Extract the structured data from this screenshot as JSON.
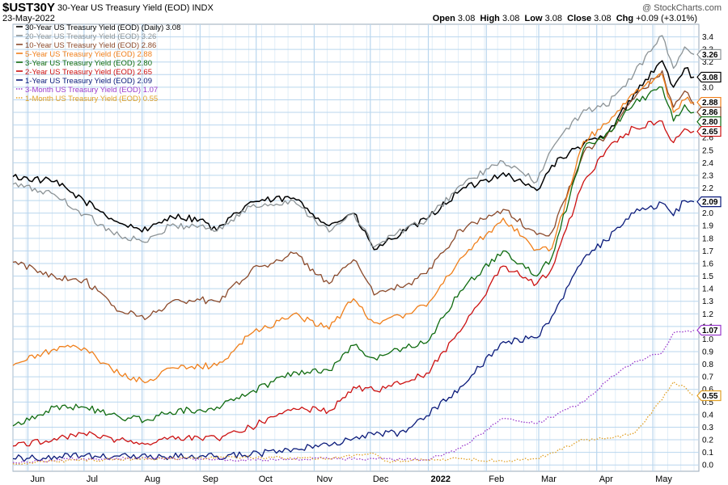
{
  "header": {
    "symbol": "$UST30Y",
    "title": "30-Year US Treasury Yield (EOD)",
    "exchange": "INDX",
    "date": "23-May-2022",
    "attribution": "@ StockCharts.com",
    "open_label": "Open",
    "open": "3.08",
    "high_label": "High",
    "high": "3.08",
    "low_label": "Low",
    "low": "3.08",
    "close_label": "Close",
    "close": "3.08",
    "chg_label": "Chg",
    "chg": "+0.09 (+3.01%)"
  },
  "colors": {
    "background": "#ffffff",
    "grid": "#b9d6ee",
    "plot_border": "#9aa8b8",
    "y30": "#000000",
    "y20": "#8c9396",
    "y10": "#8b4a2b",
    "y5": "#f07f1a",
    "y3": "#0f6b0f",
    "y2": "#cc1111",
    "y1": "#0a1a7a",
    "m3": "#9a3acb",
    "m1": "#e0a025"
  },
  "chart_data": {
    "type": "line",
    "title": "30-Year US Treasury Yield (EOD)",
    "x_range": [
      "2021-05-24",
      "2022-05-23"
    ],
    "ylim": [
      -0.05,
      3.5
    ],
    "y_ticks": [
      "0.0",
      "0.1",
      "0.2",
      "0.3",
      "0.4",
      "0.5",
      "0.6",
      "0.7",
      "0.8",
      "0.9",
      "1.0",
      "1.1",
      "1.2",
      "1.3",
      "1.4",
      "1.5",
      "1.6",
      "1.7",
      "1.8",
      "1.9",
      "2.0",
      "2.1",
      "2.2",
      "2.3",
      "2.4",
      "2.5",
      "2.6",
      "2.7",
      "2.8",
      "2.9",
      "3.0",
      "3.1",
      "3.2",
      "3.3",
      "3.4"
    ],
    "x_ticks": [
      {
        "date": "2021-06-01",
        "label": "Jun",
        "bold": false
      },
      {
        "date": "2021-07-01",
        "label": "Jul",
        "bold": false
      },
      {
        "date": "2021-08-01",
        "label": "Aug",
        "bold": false
      },
      {
        "date": "2021-09-01",
        "label": "Sep",
        "bold": false
      },
      {
        "date": "2021-10-01",
        "label": "Oct",
        "bold": false
      },
      {
        "date": "2021-11-01",
        "label": "Nov",
        "bold": false
      },
      {
        "date": "2021-12-01",
        "label": "Dec",
        "bold": false
      },
      {
        "date": "2022-01-01",
        "label": "2022",
        "bold": true
      },
      {
        "date": "2022-02-01",
        "label": "Feb",
        "bold": false
      },
      {
        "date": "2022-03-01",
        "label": "Mar",
        "bold": false
      },
      {
        "date": "2022-04-01",
        "label": "Apr",
        "bold": false
      },
      {
        "date": "2022-05-01",
        "label": "May",
        "bold": false
      }
    ],
    "grid": true,
    "legend_position": "top-left",
    "series": [
      {
        "key": "y30",
        "legend": "30-Year US Treasury Yield (EOD) (Daily) 3.08",
        "last_label": "3.08",
        "last": 3.08,
        "dotted": false,
        "points": [
          [
            "2021-05-24",
            2.29
          ],
          [
            "2021-06-15",
            2.25
          ],
          [
            "2021-07-01",
            2.1
          ],
          [
            "2021-07-20",
            1.92
          ],
          [
            "2021-08-04",
            1.86
          ],
          [
            "2021-08-16",
            1.98
          ],
          [
            "2021-09-01",
            1.95
          ],
          [
            "2021-09-10",
            1.86
          ],
          [
            "2021-09-28",
            2.09
          ],
          [
            "2021-10-21",
            2.12
          ],
          [
            "2021-11-09",
            1.9
          ],
          [
            "2021-11-22",
            2.0
          ],
          [
            "2021-12-03",
            1.71
          ],
          [
            "2021-12-20",
            1.86
          ],
          [
            "2021-12-31",
            1.95
          ],
          [
            "2022-01-18",
            2.18
          ],
          [
            "2022-02-10",
            2.32
          ],
          [
            "2022-02-28",
            2.18
          ],
          [
            "2022-03-08",
            2.38
          ],
          [
            "2022-03-25",
            2.55
          ],
          [
            "2022-04-06",
            2.61
          ],
          [
            "2022-04-21",
            2.95
          ],
          [
            "2022-05-06",
            3.21
          ],
          [
            "2022-05-12",
            3.0
          ],
          [
            "2022-05-18",
            3.15
          ],
          [
            "2022-05-23",
            3.08
          ]
        ]
      },
      {
        "key": "y20",
        "legend": "20-Year US Treasury Yield (EOD) 3.26",
        "last_label": "3.26",
        "last": 3.26,
        "dotted": false,
        "points": [
          [
            "2021-05-24",
            2.23
          ],
          [
            "2021-06-15",
            2.15
          ],
          [
            "2021-07-01",
            1.99
          ],
          [
            "2021-07-20",
            1.82
          ],
          [
            "2021-08-04",
            1.77
          ],
          [
            "2021-08-16",
            1.9
          ],
          [
            "2021-09-01",
            1.9
          ],
          [
            "2021-09-10",
            1.86
          ],
          [
            "2021-09-28",
            2.05
          ],
          [
            "2021-10-21",
            2.1
          ],
          [
            "2021-11-09",
            1.85
          ],
          [
            "2021-11-22",
            2.0
          ],
          [
            "2021-12-03",
            1.73
          ],
          [
            "2021-12-20",
            1.88
          ],
          [
            "2021-12-31",
            1.94
          ],
          [
            "2022-01-18",
            2.22
          ],
          [
            "2022-02-10",
            2.41
          ],
          [
            "2022-02-28",
            2.25
          ],
          [
            "2022-03-08",
            2.51
          ],
          [
            "2022-03-25",
            2.82
          ],
          [
            "2022-04-06",
            2.85
          ],
          [
            "2022-04-21",
            3.11
          ],
          [
            "2022-05-06",
            3.41
          ],
          [
            "2022-05-12",
            3.15
          ],
          [
            "2022-05-18",
            3.32
          ],
          [
            "2022-05-23",
            3.26
          ]
        ]
      },
      {
        "key": "y10",
        "legend": "10-Year US Treasury Yield (EOD) 2.86",
        "last_label": "2.86",
        "last": 2.86,
        "dotted": false,
        "points": [
          [
            "2021-05-24",
            1.61
          ],
          [
            "2021-06-15",
            1.5
          ],
          [
            "2021-07-01",
            1.47
          ],
          [
            "2021-07-20",
            1.22
          ],
          [
            "2021-08-04",
            1.17
          ],
          [
            "2021-08-16",
            1.29
          ],
          [
            "2021-09-01",
            1.31
          ],
          [
            "2021-09-10",
            1.3
          ],
          [
            "2021-09-28",
            1.54
          ],
          [
            "2021-10-21",
            1.68
          ],
          [
            "2021-11-09",
            1.44
          ],
          [
            "2021-11-22",
            1.63
          ],
          [
            "2021-12-03",
            1.35
          ],
          [
            "2021-12-20",
            1.43
          ],
          [
            "2021-12-31",
            1.52
          ],
          [
            "2022-01-18",
            1.87
          ],
          [
            "2022-02-10",
            2.03
          ],
          [
            "2022-02-28",
            1.83
          ],
          [
            "2022-03-08",
            1.85
          ],
          [
            "2022-03-25",
            2.48
          ],
          [
            "2022-04-06",
            2.61
          ],
          [
            "2022-04-21",
            2.91
          ],
          [
            "2022-05-06",
            3.13
          ],
          [
            "2022-05-12",
            2.84
          ],
          [
            "2022-05-18",
            2.97
          ],
          [
            "2022-05-23",
            2.86
          ]
        ]
      },
      {
        "key": "y5",
        "legend": "5-Year US Treasury Yield (EOD) 2.88",
        "last_label": "2.88",
        "last": 2.88,
        "dotted": false,
        "points": [
          [
            "2021-05-24",
            0.79
          ],
          [
            "2021-06-15",
            0.92
          ],
          [
            "2021-07-01",
            0.93
          ],
          [
            "2021-07-20",
            0.72
          ],
          [
            "2021-08-04",
            0.66
          ],
          [
            "2021-08-16",
            0.77
          ],
          [
            "2021-09-01",
            0.78
          ],
          [
            "2021-09-10",
            0.79
          ],
          [
            "2021-09-28",
            1.04
          ],
          [
            "2021-10-21",
            1.2
          ],
          [
            "2021-11-09",
            1.08
          ],
          [
            "2021-11-22",
            1.32
          ],
          [
            "2021-12-03",
            1.13
          ],
          [
            "2021-12-20",
            1.2
          ],
          [
            "2021-12-31",
            1.26
          ],
          [
            "2022-01-18",
            1.64
          ],
          [
            "2022-02-10",
            1.96
          ],
          [
            "2022-02-28",
            1.71
          ],
          [
            "2022-03-08",
            1.72
          ],
          [
            "2022-03-25",
            2.57
          ],
          [
            "2022-04-06",
            2.71
          ],
          [
            "2022-04-21",
            2.95
          ],
          [
            "2022-05-06",
            3.1
          ],
          [
            "2022-05-12",
            2.8
          ],
          [
            "2022-05-18",
            2.9
          ],
          [
            "2022-05-23",
            2.88
          ]
        ]
      },
      {
        "key": "y3",
        "legend": "3-Year US Treasury Yield (EOD) 2.80",
        "last_label": "2.80",
        "last": 2.8,
        "dotted": false,
        "points": [
          [
            "2021-05-24",
            0.31
          ],
          [
            "2021-06-15",
            0.46
          ],
          [
            "2021-07-01",
            0.46
          ],
          [
            "2021-07-20",
            0.38
          ],
          [
            "2021-08-04",
            0.36
          ],
          [
            "2021-08-16",
            0.42
          ],
          [
            "2021-09-01",
            0.44
          ],
          [
            "2021-09-10",
            0.46
          ],
          [
            "2021-09-28",
            0.58
          ],
          [
            "2021-10-21",
            0.74
          ],
          [
            "2021-11-09",
            0.75
          ],
          [
            "2021-11-22",
            0.95
          ],
          [
            "2021-12-03",
            0.85
          ],
          [
            "2021-12-20",
            0.93
          ],
          [
            "2021-12-31",
            0.97
          ],
          [
            "2022-01-18",
            1.38
          ],
          [
            "2022-02-10",
            1.7
          ],
          [
            "2022-02-28",
            1.5
          ],
          [
            "2022-03-08",
            1.65
          ],
          [
            "2022-03-25",
            2.51
          ],
          [
            "2022-04-06",
            2.63
          ],
          [
            "2022-04-21",
            2.87
          ],
          [
            "2022-05-06",
            3.0
          ],
          [
            "2022-05-12",
            2.73
          ],
          [
            "2022-05-18",
            2.86
          ],
          [
            "2022-05-23",
            2.8
          ]
        ]
      },
      {
        "key": "y2",
        "legend": "2-Year US Treasury Yield (EOD) 2.65",
        "last_label": "2.65",
        "last": 2.65,
        "dotted": false,
        "points": [
          [
            "2021-05-24",
            0.15
          ],
          [
            "2021-06-15",
            0.21
          ],
          [
            "2021-07-01",
            0.25
          ],
          [
            "2021-07-20",
            0.2
          ],
          [
            "2021-08-04",
            0.17
          ],
          [
            "2021-08-16",
            0.22
          ],
          [
            "2021-09-01",
            0.21
          ],
          [
            "2021-09-10",
            0.21
          ],
          [
            "2021-09-28",
            0.3
          ],
          [
            "2021-10-21",
            0.45
          ],
          [
            "2021-11-09",
            0.43
          ],
          [
            "2021-11-22",
            0.62
          ],
          [
            "2021-12-03",
            0.59
          ],
          [
            "2021-12-20",
            0.66
          ],
          [
            "2021-12-31",
            0.73
          ],
          [
            "2022-01-18",
            1.06
          ],
          [
            "2022-02-10",
            1.58
          ],
          [
            "2022-02-28",
            1.44
          ],
          [
            "2022-03-08",
            1.56
          ],
          [
            "2022-03-25",
            2.25
          ],
          [
            "2022-04-06",
            2.5
          ],
          [
            "2022-04-21",
            2.68
          ],
          [
            "2022-05-06",
            2.73
          ],
          [
            "2022-05-12",
            2.56
          ],
          [
            "2022-05-18",
            2.67
          ],
          [
            "2022-05-23",
            2.65
          ]
        ]
      },
      {
        "key": "y1",
        "legend": "1-Year US Treasury Yield (EOD) 2.09",
        "last_label": "2.09",
        "last": 2.09,
        "dotted": false,
        "points": [
          [
            "2021-05-24",
            0.05
          ],
          [
            "2021-06-15",
            0.07
          ],
          [
            "2021-07-01",
            0.07
          ],
          [
            "2021-07-20",
            0.07
          ],
          [
            "2021-08-04",
            0.06
          ],
          [
            "2021-08-16",
            0.07
          ],
          [
            "2021-09-01",
            0.07
          ],
          [
            "2021-09-10",
            0.07
          ],
          [
            "2021-09-28",
            0.08
          ],
          [
            "2021-10-21",
            0.13
          ],
          [
            "2021-11-09",
            0.15
          ],
          [
            "2021-11-22",
            0.21
          ],
          [
            "2021-12-03",
            0.24
          ],
          [
            "2021-12-20",
            0.26
          ],
          [
            "2021-12-31",
            0.39
          ],
          [
            "2022-01-18",
            0.62
          ],
          [
            "2022-02-10",
            0.98
          ],
          [
            "2022-02-28",
            1.01
          ],
          [
            "2022-03-08",
            1.18
          ],
          [
            "2022-03-25",
            1.64
          ],
          [
            "2022-04-06",
            1.78
          ],
          [
            "2022-04-21",
            2.0
          ],
          [
            "2022-05-06",
            2.08
          ],
          [
            "2022-05-12",
            1.98
          ],
          [
            "2022-05-18",
            2.1
          ],
          [
            "2022-05-23",
            2.09
          ]
        ]
      },
      {
        "key": "m3",
        "legend": "3-Month US Treasury Yield (EOD) 1.07",
        "last_label": "1.07",
        "last": 1.07,
        "dotted": true,
        "points": [
          [
            "2021-05-24",
            0.02
          ],
          [
            "2021-07-01",
            0.05
          ],
          [
            "2021-08-16",
            0.05
          ],
          [
            "2021-09-28",
            0.04
          ],
          [
            "2021-11-09",
            0.05
          ],
          [
            "2021-12-03",
            0.05
          ],
          [
            "2021-12-31",
            0.04
          ],
          [
            "2022-01-18",
            0.13
          ],
          [
            "2022-02-10",
            0.37
          ],
          [
            "2022-02-28",
            0.33
          ],
          [
            "2022-03-25",
            0.5
          ],
          [
            "2022-04-06",
            0.66
          ],
          [
            "2022-04-21",
            0.82
          ],
          [
            "2022-05-06",
            0.89
          ],
          [
            "2022-05-12",
            1.05
          ],
          [
            "2022-05-18",
            1.06
          ],
          [
            "2022-05-23",
            1.07
          ]
        ]
      },
      {
        "key": "m1",
        "legend": "1-Month US Treasury Yield (EOD) 0.55",
        "last_label": "0.55",
        "last": 0.55,
        "dotted": true,
        "points": [
          [
            "2021-05-24",
            0.01
          ],
          [
            "2021-07-01",
            0.04
          ],
          [
            "2021-08-16",
            0.05
          ],
          [
            "2021-09-28",
            0.06
          ],
          [
            "2021-11-09",
            0.05
          ],
          [
            "2021-12-03",
            0.09
          ],
          [
            "2021-12-10",
            0.03
          ],
          [
            "2021-12-31",
            0.04
          ],
          [
            "2022-01-18",
            0.05
          ],
          [
            "2022-02-10",
            0.03
          ],
          [
            "2022-02-28",
            0.05
          ],
          [
            "2022-03-25",
            0.2
          ],
          [
            "2022-04-06",
            0.21
          ],
          [
            "2022-04-21",
            0.25
          ],
          [
            "2022-05-06",
            0.52
          ],
          [
            "2022-05-12",
            0.66
          ],
          [
            "2022-05-18",
            0.62
          ],
          [
            "2022-05-23",
            0.55
          ]
        ]
      }
    ]
  }
}
